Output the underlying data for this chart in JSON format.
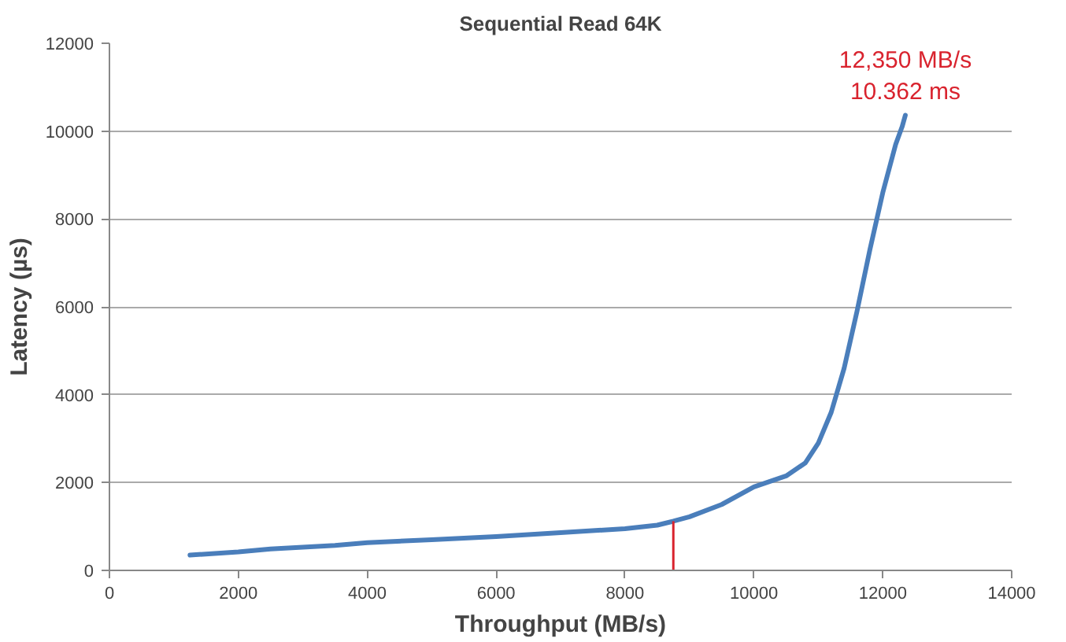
{
  "chart_data": {
    "type": "line",
    "title": "Sequential Read 64K",
    "xlabel": "Throughput (MB/s)",
    "ylabel": "Latency (µs)",
    "series": [
      {
        "color": "#4a7ebb",
        "x": [
          1250,
          2000,
          2500,
          3000,
          3500,
          4000,
          5000,
          6000,
          7000,
          8000,
          8500,
          8750,
          9000,
          9500,
          10000,
          10500,
          10800,
          11000,
          11200,
          11400,
          11600,
          11800,
          12000,
          12200,
          12300,
          12350
        ],
        "values": [
          350,
          420,
          490,
          530,
          570,
          630,
          700,
          770,
          860,
          950,
          1030,
          1120,
          1220,
          1500,
          1900,
          2150,
          2450,
          2900,
          3600,
          4600,
          5900,
          7300,
          8600,
          9700,
          10100,
          10362
        ]
      }
    ],
    "xlim": [
      0,
      14000
    ],
    "xticks": [
      0,
      2000,
      4000,
      6000,
      8000,
      10000,
      12000,
      14000
    ],
    "ylim": [
      0,
      12000
    ],
    "yticks": [
      0,
      2000,
      4000,
      6000,
      8000,
      10000,
      12000
    ],
    "grid": "y",
    "line_style": "solid",
    "ref_lines": [
      {
        "axis": "x",
        "value": 8750,
        "color": "#d9232e"
      }
    ],
    "annotations": [
      {
        "text": "12,350 MB/s\n10.362 ms",
        "x": 12350,
        "y": 10362
      }
    ]
  }
}
